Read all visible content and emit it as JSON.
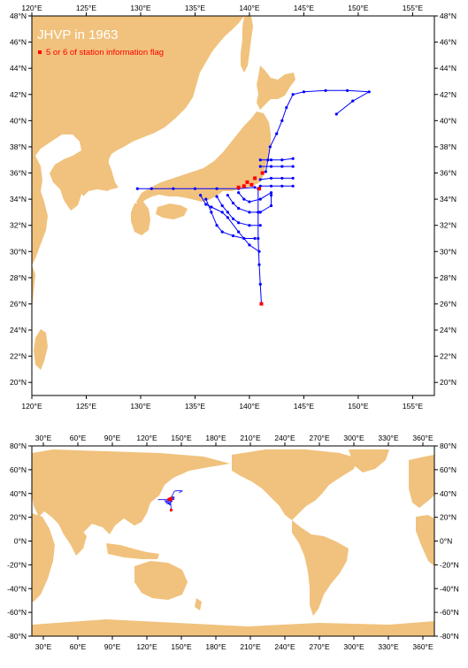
{
  "colors": {
    "land": "#f1c27d",
    "track": "#0000ff",
    "flag": "#ff0000",
    "frame": "#000000",
    "ocean": "#ffffff"
  },
  "regional_map": {
    "title": "JHVP in 1963",
    "legend_label": "5 or 6 of station information flag",
    "lon_labels": [
      "120°E",
      "125°E",
      "130°E",
      "135°E",
      "140°E",
      "145°E",
      "150°E",
      "155°E"
    ],
    "lat_labels": [
      "20°N",
      "22°N",
      "24°N",
      "26°N",
      "28°N",
      "30°N",
      "32°N",
      "34°N",
      "36°N",
      "38°N",
      "40°N",
      "42°N",
      "44°N",
      "46°N",
      "48°N"
    ],
    "lon_range": [
      120,
      157
    ],
    "lat_range": [
      19,
      48
    ]
  },
  "global_map": {
    "lon_labels": [
      "30°E",
      "60°E",
      "90°E",
      "120°E",
      "150°E",
      "180°E",
      "210°E",
      "240°E",
      "270°E",
      "300°E",
      "330°E",
      "360°E"
    ],
    "lat_labels": [
      "80°N",
      "60°N",
      "40°N",
      "20°N",
      "0°N",
      "-20°N",
      "-40°N",
      "-60°N",
      "-80°N"
    ],
    "lon_range": [
      20,
      370
    ],
    "lat_range": [
      -80,
      80
    ]
  },
  "tracks": [
    {
      "name": "line-130",
      "points": [
        [
          129.7,
          34.8
        ],
        [
          131,
          34.8
        ],
        [
          133,
          34.8
        ],
        [
          135,
          34.8
        ],
        [
          137,
          34.8
        ],
        [
          139,
          34.8
        ],
        [
          140.5,
          34.9
        ]
      ]
    },
    {
      "name": "north-pacific",
      "points": [
        [
          141.5,
          36.1
        ],
        [
          141.7,
          37
        ],
        [
          141.9,
          38
        ],
        [
          142.5,
          39
        ],
        [
          143,
          40
        ],
        [
          143.4,
          41
        ],
        [
          144,
          42
        ],
        [
          145,
          42.2
        ],
        [
          147,
          42.3
        ],
        [
          149,
          42.3
        ],
        [
          151,
          42.2
        ],
        [
          149.5,
          41.5
        ],
        [
          148,
          40.5
        ]
      ]
    },
    {
      "name": "south-leg",
      "points": [
        [
          140.8,
          34.8
        ],
        [
          140.8,
          33
        ],
        [
          140.8,
          31
        ],
        [
          140.9,
          29
        ],
        [
          141,
          27.5
        ],
        [
          141.1,
          26
        ]
      ]
    },
    {
      "name": "east-lines",
      "points": [
        [
          141,
          37
        ],
        [
          142,
          37
        ],
        [
          143,
          37
        ],
        [
          144,
          37.1
        ]
      ]
    },
    {
      "name": "east-lines-2",
      "points": [
        [
          141,
          36.5
        ],
        [
          142,
          36.5
        ],
        [
          143,
          36.5
        ],
        [
          144,
          36.5
        ]
      ]
    },
    {
      "name": "east-lines-3",
      "points": [
        [
          141,
          35.5
        ],
        [
          142,
          35.6
        ],
        [
          143,
          35.6
        ],
        [
          144,
          35.6
        ]
      ]
    },
    {
      "name": "east-lines-4",
      "points": [
        [
          141,
          35
        ],
        [
          142,
          35
        ],
        [
          143,
          35
        ],
        [
          144,
          35
        ]
      ]
    },
    {
      "name": "south-grid-1",
      "points": [
        [
          136,
          34
        ],
        [
          136.5,
          33
        ],
        [
          137,
          32
        ],
        [
          137.5,
          31.5
        ],
        [
          138.5,
          31.2
        ],
        [
          139.5,
          31
        ],
        [
          140.5,
          31
        ]
      ]
    },
    {
      "name": "south-grid-2",
      "points": [
        [
          137,
          34.2
        ],
        [
          137.5,
          33.5
        ],
        [
          138,
          33
        ],
        [
          138.5,
          32.5
        ],
        [
          139,
          32.2
        ],
        [
          140,
          32
        ],
        [
          141,
          32
        ]
      ]
    },
    {
      "name": "south-grid-3",
      "points": [
        [
          138,
          34.3
        ],
        [
          138.5,
          33.7
        ],
        [
          139,
          33.3
        ],
        [
          140,
          33
        ],
        [
          141,
          33
        ],
        [
          142,
          33.5
        ],
        [
          142,
          34.3
        ]
      ]
    },
    {
      "name": "south-grid-4",
      "points": [
        [
          139,
          34.5
        ],
        [
          139.5,
          34
        ],
        [
          140,
          33.8
        ],
        [
          141,
          34
        ],
        [
          142,
          34.5
        ]
      ]
    },
    {
      "name": "south-grid-5",
      "points": [
        [
          135.5,
          34.3
        ],
        [
          136,
          33.6
        ],
        [
          136.5,
          33.4
        ],
        [
          137.5,
          33
        ],
        [
          138,
          32.6
        ],
        [
          139,
          31.5
        ],
        [
          140,
          30.5
        ],
        [
          140.9,
          30
        ]
      ]
    }
  ],
  "flags": [
    [
      139.5,
      35.0
    ],
    [
      140.2,
      35.1
    ],
    [
      139.8,
      35.3
    ],
    [
      140.9,
      34.8
    ],
    [
      141.1,
      26.0
    ],
    [
      139.0,
      34.9
    ],
    [
      140.5,
      35.6
    ],
    [
      141.2,
      36.0
    ]
  ]
}
